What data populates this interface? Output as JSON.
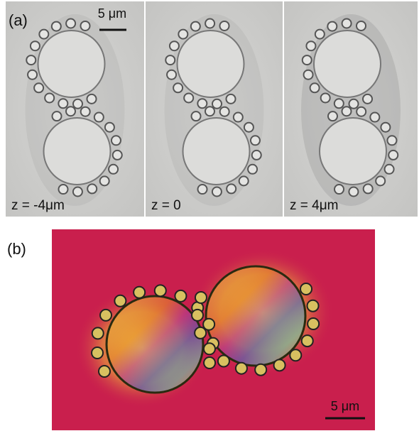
{
  "panel_a": {
    "label": "(a)",
    "scale_bar": "5 μm",
    "images": [
      {
        "caption": "z = -4μm"
      },
      {
        "caption": "z = 0"
      },
      {
        "caption": "z = 4μm"
      }
    ]
  },
  "panel_b": {
    "label": "(b)",
    "scale_bar": "5 μm"
  }
}
